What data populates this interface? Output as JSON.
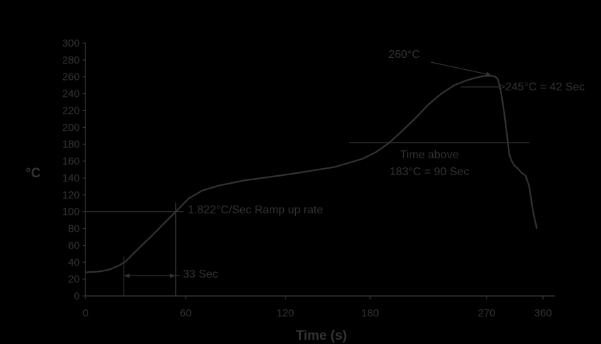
{
  "colors": {
    "background": "#000000",
    "ink": "#333333"
  },
  "chart_data": {
    "type": "line",
    "xlabel": "Time (s)",
    "ylabel": "°C",
    "xlim": [
      0,
      360
    ],
    "ylim": [
      0,
      300
    ],
    "x_ticks": [
      0,
      60,
      120,
      180,
      270,
      360
    ],
    "y_ticks": [
      0,
      20,
      40,
      60,
      80,
      100,
      120,
      140,
      160,
      180,
      200,
      220,
      240,
      260,
      280,
      300
    ],
    "grid": false,
    "series": [
      {
        "x": [
          0,
          8,
          14,
          20,
          24,
          30,
          40,
          50,
          56,
          62,
          70,
          80,
          95,
          110,
          125,
          140,
          155,
          165,
          175,
          185,
          195,
          205,
          215,
          225,
          235,
          245,
          255,
          262,
          268,
          272,
          276,
          280,
          284,
          286,
          288,
          292,
          296,
          300,
          304,
          306,
          310,
          314,
          320,
          326,
          332,
          338,
          344,
          350
        ],
        "y": [
          28,
          29,
          31,
          36,
          41,
          53,
          72,
          92,
          104,
          116,
          125,
          131,
          137,
          141,
          145,
          149,
          153,
          158,
          163,
          171,
          182,
          196,
          211,
          227,
          240,
          250,
          256,
          259,
          261,
          261,
          261,
          261,
          260,
          259,
          257,
          245,
          228,
          206,
          182,
          168,
          160,
          155,
          151,
          146,
          143,
          130,
          100,
          80
        ]
      }
    ],
    "annotations": [
      {
        "text": "260°C",
        "x": 265,
        "y": 272,
        "arrow_to": [
          278,
          261
        ]
      },
      {
        "text": ">245°C = 42 Sec",
        "x": 304,
        "y": 248,
        "line_from": 250,
        "line_to": 291,
        "line_y": 248
      },
      {
        "text": "Time above",
        "x": 231,
        "y": 166
      },
      {
        "text": "183°C = 90 Sec",
        "x": 231,
        "y": 147,
        "line_from": 165,
        "line_to": 338,
        "line_y": 182
      },
      {
        "text": "1.822°C/Sec Ramp up rate",
        "x": 80,
        "y": 102
      },
      {
        "text": "33 Sec",
        "x": 76,
        "y": 24,
        "from_x": 23,
        "to_x": 54,
        "arrow_y": 24
      }
    ]
  }
}
